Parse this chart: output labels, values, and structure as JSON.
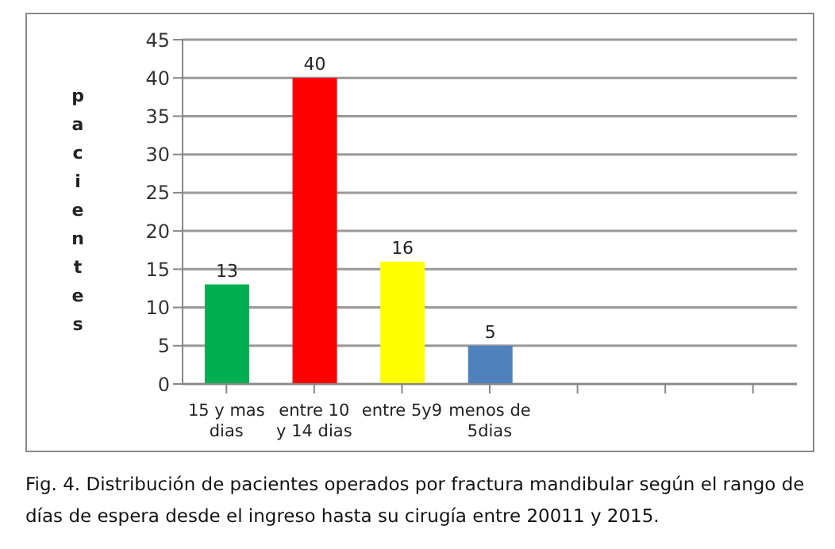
{
  "chart_data": {
    "type": "bar",
    "ylabel": "pacientes",
    "categories": [
      "15 y mas dias",
      "entre 10 y 14 dias",
      "entre 5y9",
      "menos de 5dias",
      null,
      null,
      null
    ],
    "values": [
      13,
      40,
      16,
      5,
      null,
      null,
      null
    ],
    "colors": [
      "#00b050",
      "#ff0000",
      "#ffff00",
      "#4f81bd",
      "#4f81bd",
      "#4f81bd",
      "#4f81bd"
    ],
    "ylim": [
      0,
      45
    ],
    "yticks": [
      0,
      5,
      10,
      15,
      20,
      25,
      30,
      35,
      40,
      45
    ],
    "grid": "y",
    "data_labels": true,
    "legend": false,
    "annotations": [
      "Fig. 4. Distribución de pacientes operados por fractura mandibular según el rango de días de espera desde el ingreso hasta su cirugía entre 20011 y 2015."
    ]
  }
}
